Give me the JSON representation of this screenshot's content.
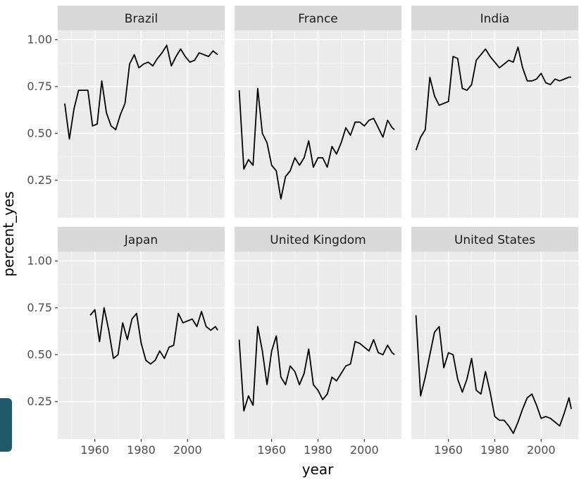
{
  "chart_data": {
    "type": "line",
    "layout": "facet_wrap",
    "xlabel": "year",
    "ylabel": "percent_yes",
    "xlim": [
      1944,
      2016
    ],
    "ylim": [
      0.05,
      1.05
    ],
    "x_ticks": [
      1960,
      1980,
      2000
    ],
    "x_tick_labels": [
      "1960",
      "1980",
      "2000"
    ],
    "y_ticks": [
      0.25,
      0.5,
      0.75,
      1.0
    ],
    "y_tick_labels": [
      "0.25",
      "0.50",
      "0.75",
      "1.00"
    ],
    "grid": true,
    "facets": [
      {
        "name": "Brazil",
        "x": [
          1947,
          1949,
          1951,
          1953,
          1955,
          1957,
          1959,
          1961,
          1963,
          1965,
          1967,
          1969,
          1971,
          1973,
          1975,
          1977,
          1979,
          1981,
          1983,
          1985,
          1987,
          1989,
          1991,
          1993,
          1995,
          1997,
          1999,
          2001,
          2003,
          2005,
          2007,
          2009,
          2011,
          2013
        ],
        "y": [
          0.66,
          0.47,
          0.63,
          0.73,
          0.73,
          0.73,
          0.54,
          0.55,
          0.78,
          0.61,
          0.54,
          0.52,
          0.6,
          0.66,
          0.87,
          0.92,
          0.85,
          0.87,
          0.88,
          0.86,
          0.9,
          0.93,
          0.97,
          0.86,
          0.91,
          0.95,
          0.91,
          0.88,
          0.89,
          0.93,
          0.92,
          0.91,
          0.94,
          0.92
        ]
      },
      {
        "name": "France",
        "x": [
          1946,
          1948,
          1950,
          1952,
          1954,
          1956,
          1958,
          1960,
          1962,
          1964,
          1966,
          1968,
          1970,
          1972,
          1974,
          1976,
          1978,
          1980,
          1982,
          1984,
          1986,
          1988,
          1990,
          1992,
          1994,
          1996,
          1998,
          2000,
          2002,
          2004,
          2006,
          2008,
          2010,
          2012,
          2013
        ],
        "y": [
          0.73,
          0.31,
          0.36,
          0.33,
          0.74,
          0.5,
          0.45,
          0.33,
          0.3,
          0.15,
          0.27,
          0.3,
          0.37,
          0.33,
          0.37,
          0.46,
          0.32,
          0.37,
          0.37,
          0.32,
          0.43,
          0.39,
          0.45,
          0.53,
          0.49,
          0.56,
          0.56,
          0.54,
          0.57,
          0.58,
          0.53,
          0.48,
          0.57,
          0.53,
          0.52
        ]
      },
      {
        "name": "India",
        "x": [
          1946,
          1948,
          1950,
          1952,
          1954,
          1956,
          1958,
          1960,
          1962,
          1964,
          1966,
          1968,
          1970,
          1972,
          1974,
          1976,
          1978,
          1980,
          1982,
          1984,
          1986,
          1988,
          1990,
          1992,
          1994,
          1996,
          1998,
          2000,
          2002,
          2004,
          2006,
          2008,
          2010,
          2012,
          2013
        ],
        "y": [
          0.41,
          0.48,
          0.52,
          0.8,
          0.7,
          0.65,
          0.66,
          0.67,
          0.91,
          0.9,
          0.74,
          0.73,
          0.76,
          0.89,
          0.92,
          0.95,
          0.91,
          0.88,
          0.85,
          0.87,
          0.89,
          0.88,
          0.96,
          0.85,
          0.78,
          0.78,
          0.79,
          0.82,
          0.77,
          0.76,
          0.79,
          0.78,
          0.79,
          0.8,
          0.8
        ]
      },
      {
        "name": "Japan",
        "x": [
          1958,
          1960,
          1962,
          1964,
          1966,
          1968,
          1970,
          1972,
          1974,
          1976,
          1978,
          1980,
          1982,
          1984,
          1986,
          1988,
          1990,
          1992,
          1994,
          1996,
          1998,
          2000,
          2002,
          2004,
          2006,
          2008,
          2010,
          2012,
          2013
        ],
        "y": [
          0.71,
          0.74,
          0.57,
          0.75,
          0.63,
          0.48,
          0.5,
          0.67,
          0.58,
          0.69,
          0.72,
          0.56,
          0.47,
          0.45,
          0.47,
          0.52,
          0.48,
          0.54,
          0.55,
          0.72,
          0.67,
          0.68,
          0.69,
          0.65,
          0.73,
          0.65,
          0.63,
          0.65,
          0.63
        ]
      },
      {
        "name": "United Kingdom",
        "x": [
          1946,
          1948,
          1950,
          1952,
          1954,
          1956,
          1958,
          1960,
          1962,
          1964,
          1966,
          1968,
          1970,
          1972,
          1974,
          1976,
          1978,
          1980,
          1982,
          1984,
          1986,
          1988,
          1990,
          1992,
          1994,
          1996,
          1998,
          2000,
          2002,
          2004,
          2006,
          2008,
          2010,
          2012,
          2013
        ],
        "y": [
          0.58,
          0.2,
          0.28,
          0.23,
          0.65,
          0.52,
          0.34,
          0.52,
          0.6,
          0.38,
          0.34,
          0.44,
          0.41,
          0.34,
          0.4,
          0.53,
          0.34,
          0.31,
          0.26,
          0.29,
          0.38,
          0.36,
          0.4,
          0.44,
          0.45,
          0.57,
          0.56,
          0.54,
          0.52,
          0.58,
          0.51,
          0.5,
          0.55,
          0.51,
          0.5
        ]
      },
      {
        "name": "United States",
        "x": [
          1946,
          1948,
          1950,
          1952,
          1954,
          1956,
          1958,
          1960,
          1962,
          1964,
          1966,
          1968,
          1970,
          1972,
          1974,
          1976,
          1978,
          1980,
          1982,
          1984,
          1986,
          1988,
          1990,
          1992,
          1994,
          1996,
          1998,
          2000,
          2002,
          2004,
          2006,
          2008,
          2010,
          2012,
          2013
        ],
        "y": [
          0.71,
          0.28,
          0.38,
          0.5,
          0.62,
          0.65,
          0.43,
          0.51,
          0.5,
          0.37,
          0.3,
          0.37,
          0.48,
          0.31,
          0.29,
          0.41,
          0.3,
          0.17,
          0.15,
          0.15,
          0.12,
          0.08,
          0.14,
          0.21,
          0.27,
          0.29,
          0.23,
          0.16,
          0.17,
          0.16,
          0.14,
          0.12,
          0.19,
          0.27,
          0.21
        ]
      }
    ]
  }
}
